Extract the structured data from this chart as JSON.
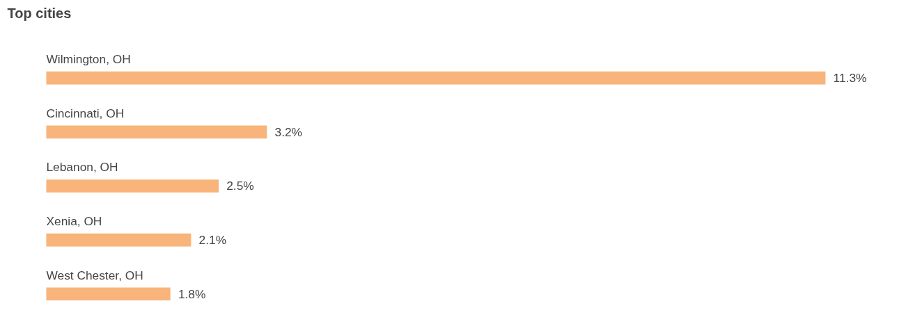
{
  "chart_data": {
    "type": "bar",
    "orientation": "horizontal",
    "title": "Top cities",
    "categories": [
      "Wilmington, OH",
      "Cincinnati, OH",
      "Lebanon, OH",
      "Xenia, OH",
      "West Chester, OH"
    ],
    "values": [
      11.3,
      3.2,
      2.5,
      2.1,
      1.8
    ],
    "value_labels": [
      "11.3%",
      "3.2%",
      "2.5%",
      "2.1%",
      "1.8%"
    ],
    "color": "#f8b47a",
    "grid": false,
    "tick_labels": false
  }
}
